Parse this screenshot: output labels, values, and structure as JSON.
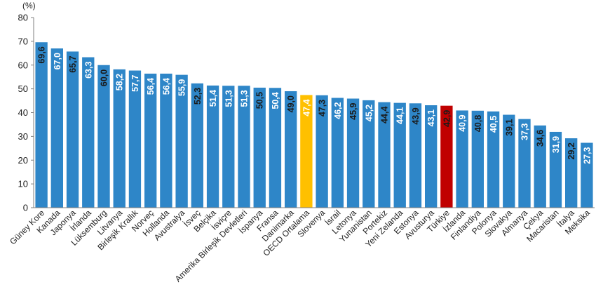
{
  "chart_data": {
    "type": "bar",
    "unit": "(%)",
    "ylim": [
      0,
      80
    ],
    "yticks": [
      "0",
      "10",
      "20",
      "30",
      "40",
      "50",
      "60",
      "70",
      "80"
    ],
    "grid": false,
    "legend": "none",
    "categories": [
      "Güney Kore",
      "Kanada",
      "Japonya",
      "İrlanda",
      "Lüksemburg",
      "Litvanya",
      "Birleşik Krallık",
      "Norveç",
      "Hollanda",
      "Avustralya",
      "İsveç",
      "Belçika",
      "İsviçre",
      "Amerika Birleşik Devletleri",
      "İspanya",
      "Fransa",
      "Danimarka",
      "OECD Ortalama",
      "Slovenya",
      "İsrail",
      "Letonya",
      "Yunanistan",
      "Portekiz",
      "Yeni Zelanda",
      "Estonya",
      "Avusturya",
      "Türkiye",
      "İzlanda",
      "Finlandiya",
      "Polonya",
      "Slovakya",
      "Almanya",
      "Çekya",
      "Macaristan",
      "İtalya",
      "Meksika"
    ],
    "values": [
      69.6,
      67.0,
      65.7,
      63.3,
      60.0,
      58.2,
      57.7,
      56.4,
      56.4,
      55.9,
      52.3,
      51.4,
      51.3,
      51.3,
      50.5,
      50.4,
      49.0,
      47.4,
      47.3,
      46.2,
      45.9,
      45.2,
      44.4,
      44.1,
      43.9,
      43.1,
      42.9,
      40.9,
      40.8,
      40.5,
      39.1,
      37.3,
      34.6,
      31.9,
      29.2,
      27.3
    ],
    "value_labels": [
      "69,6",
      "67,0",
      "65,7",
      "63,3",
      "60,0",
      "58,2",
      "57,7",
      "56,4",
      "56,4",
      "55,9",
      "52,3",
      "51,4",
      "51,3",
      "51,3",
      "50,5",
      "50,4",
      "49,0",
      "47,4",
      "47,3",
      "46,2",
      "45,9",
      "45,2",
      "44,4",
      "44,1",
      "43,9",
      "43,1",
      "42,9",
      "40,9",
      "40,8",
      "40,5",
      "39,1",
      "37,3",
      "34,6",
      "31,9",
      "29,2",
      "27,3"
    ],
    "label_colors": [
      "black",
      "white",
      "black",
      "white",
      "black",
      "white",
      "white",
      "white",
      "white",
      "white",
      "black",
      "white",
      "white",
      "white",
      "black",
      "white",
      "black",
      "white",
      "black",
      "white",
      "black",
      "white",
      "black",
      "white",
      "black",
      "white",
      "black",
      "white",
      "black",
      "white",
      "black",
      "white",
      "black",
      "white",
      "black",
      "white"
    ],
    "colors": {
      "default": "#2E86C8",
      "highlight_oecd": "#FFC000",
      "highlight_turkiye": "#C00000",
      "label_black": "#1a1a1a",
      "label_white": "#ffffff",
      "axis": "#7f7f7f"
    },
    "highlight": {
      "OECD Ortalama": "highlight_oecd",
      "Türkiye": "highlight_turkiye"
    }
  }
}
